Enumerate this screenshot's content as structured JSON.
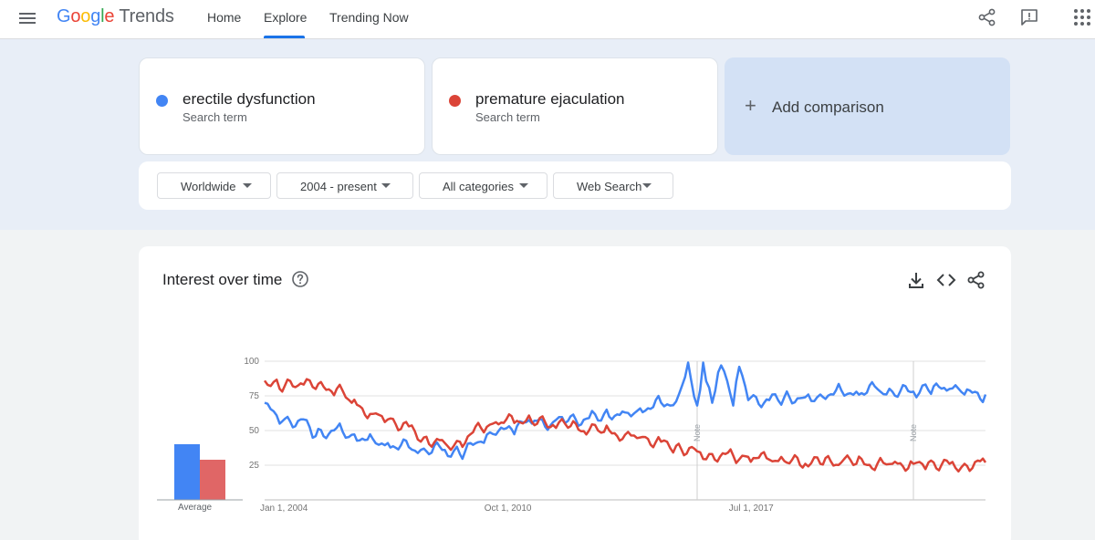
{
  "header": {
    "logo": {
      "letters": [
        "G",
        "o",
        "o",
        "g",
        "l",
        "e"
      ],
      "product": "Trends"
    },
    "nav": [
      {
        "label": "Home",
        "active": false
      },
      {
        "label": "Explore",
        "active": true
      },
      {
        "label": "Trending Now",
        "active": false
      }
    ],
    "icons": [
      "menu-icon",
      "share-icon",
      "feedback-icon",
      "apps-grid-icon"
    ]
  },
  "terms": [
    {
      "name": "erectile dysfunction",
      "sub": "Search term",
      "color": "#4285f4"
    },
    {
      "name": "premature ejaculation",
      "sub": "Search term",
      "color": "#db4437"
    }
  ],
  "add_comparison": {
    "plus": "+",
    "label": "Add comparison"
  },
  "filters": [
    {
      "label": "Worldwide"
    },
    {
      "label": "2004 - present"
    },
    {
      "label": "All categories"
    },
    {
      "label": "Web Search"
    }
  ],
  "interest": {
    "title": "Interest over time",
    "average_label": "Average",
    "tools": [
      "download-icon",
      "embed-icon",
      "share-icon"
    ],
    "notes": [
      "Note",
      "Note"
    ]
  },
  "chart_data": {
    "type": "line",
    "x_tick_labels": [
      "Jan 1, 2004",
      "Oct 1, 2010",
      "Jul 1, 2017"
    ],
    "y_tick_labels": [
      "100",
      "75",
      "50",
      "25"
    ],
    "ylim": [
      0,
      100
    ],
    "xlim": [
      "2004-01",
      "2024-01"
    ],
    "grid": true,
    "note_markers": [
      "2016-01",
      "2022-01"
    ],
    "averages": [
      {
        "name": "erectile dysfunction",
        "value": 61
      },
      {
        "name": "premature ejaculation",
        "value": 44
      }
    ],
    "series": [
      {
        "name": "erectile dysfunction",
        "color": "#4285f4",
        "points": [
          [
            "2004-01",
            70
          ],
          [
            "2004-06",
            55
          ],
          [
            "2005-01",
            58
          ],
          [
            "2005-06",
            46
          ],
          [
            "2006-01",
            52
          ],
          [
            "2006-06",
            47
          ],
          [
            "2007-01",
            44
          ],
          [
            "2007-06",
            41
          ],
          [
            "2008-01",
            38
          ],
          [
            "2008-06",
            37
          ],
          [
            "2009-01",
            36
          ],
          [
            "2009-06",
            33
          ],
          [
            "2010-01",
            42
          ],
          [
            "2010-06",
            47
          ],
          [
            "2011-01",
            53
          ],
          [
            "2011-06",
            55
          ],
          [
            "2012-01",
            56
          ],
          [
            "2012-06",
            57
          ],
          [
            "2013-01",
            59
          ],
          [
            "2013-06",
            62
          ],
          [
            "2014-01",
            63
          ],
          [
            "2014-06",
            66
          ],
          [
            "2015-01",
            70
          ],
          [
            "2015-06",
            71
          ],
          [
            "2015-10",
            99
          ],
          [
            "2016-01",
            68
          ],
          [
            "2016-03",
            99
          ],
          [
            "2016-06",
            70
          ],
          [
            "2016-09",
            97
          ],
          [
            "2017-01",
            68
          ],
          [
            "2017-03",
            96
          ],
          [
            "2017-06",
            72
          ],
          [
            "2018-01",
            72
          ],
          [
            "2018-06",
            74
          ],
          [
            "2019-01",
            74
          ],
          [
            "2019-06",
            76
          ],
          [
            "2020-01",
            79
          ],
          [
            "2020-06",
            78
          ],
          [
            "2021-01",
            80
          ],
          [
            "2021-06",
            78
          ],
          [
            "2022-01",
            78
          ],
          [
            "2022-06",
            79
          ],
          [
            "2023-01",
            80
          ],
          [
            "2023-06",
            76
          ],
          [
            "2024-01",
            76
          ]
        ]
      },
      {
        "name": "premature ejaculation",
        "color": "#db4437",
        "points": [
          [
            "2004-01",
            86
          ],
          [
            "2004-06",
            80
          ],
          [
            "2005-01",
            84
          ],
          [
            "2005-06",
            80
          ],
          [
            "2006-01",
            80
          ],
          [
            "2006-06",
            70
          ],
          [
            "2007-01",
            62
          ],
          [
            "2007-06",
            58
          ],
          [
            "2008-01",
            53
          ],
          [
            "2008-06",
            45
          ],
          [
            "2009-01",
            41
          ],
          [
            "2009-06",
            42
          ],
          [
            "2010-01",
            52
          ],
          [
            "2010-06",
            56
          ],
          [
            "2011-01",
            57
          ],
          [
            "2011-06",
            56
          ],
          [
            "2012-01",
            54
          ],
          [
            "2012-06",
            52
          ],
          [
            "2013-01",
            50
          ],
          [
            "2013-06",
            49
          ],
          [
            "2014-01",
            47
          ],
          [
            "2014-06",
            45
          ],
          [
            "2015-01",
            42
          ],
          [
            "2015-06",
            39
          ],
          [
            "2016-01",
            35
          ],
          [
            "2016-06",
            33
          ],
          [
            "2017-01",
            32
          ],
          [
            "2017-06",
            31
          ],
          [
            "2018-01",
            29
          ],
          [
            "2018-06",
            28
          ],
          [
            "2019-01",
            26
          ],
          [
            "2019-06",
            26
          ],
          [
            "2020-01",
            27
          ],
          [
            "2020-06",
            26
          ],
          [
            "2021-01",
            26
          ],
          [
            "2021-06",
            26
          ],
          [
            "2022-01",
            26
          ],
          [
            "2022-06",
            27
          ],
          [
            "2023-01",
            26
          ],
          [
            "2023-06",
            26
          ],
          [
            "2024-01",
            27
          ]
        ]
      }
    ]
  }
}
